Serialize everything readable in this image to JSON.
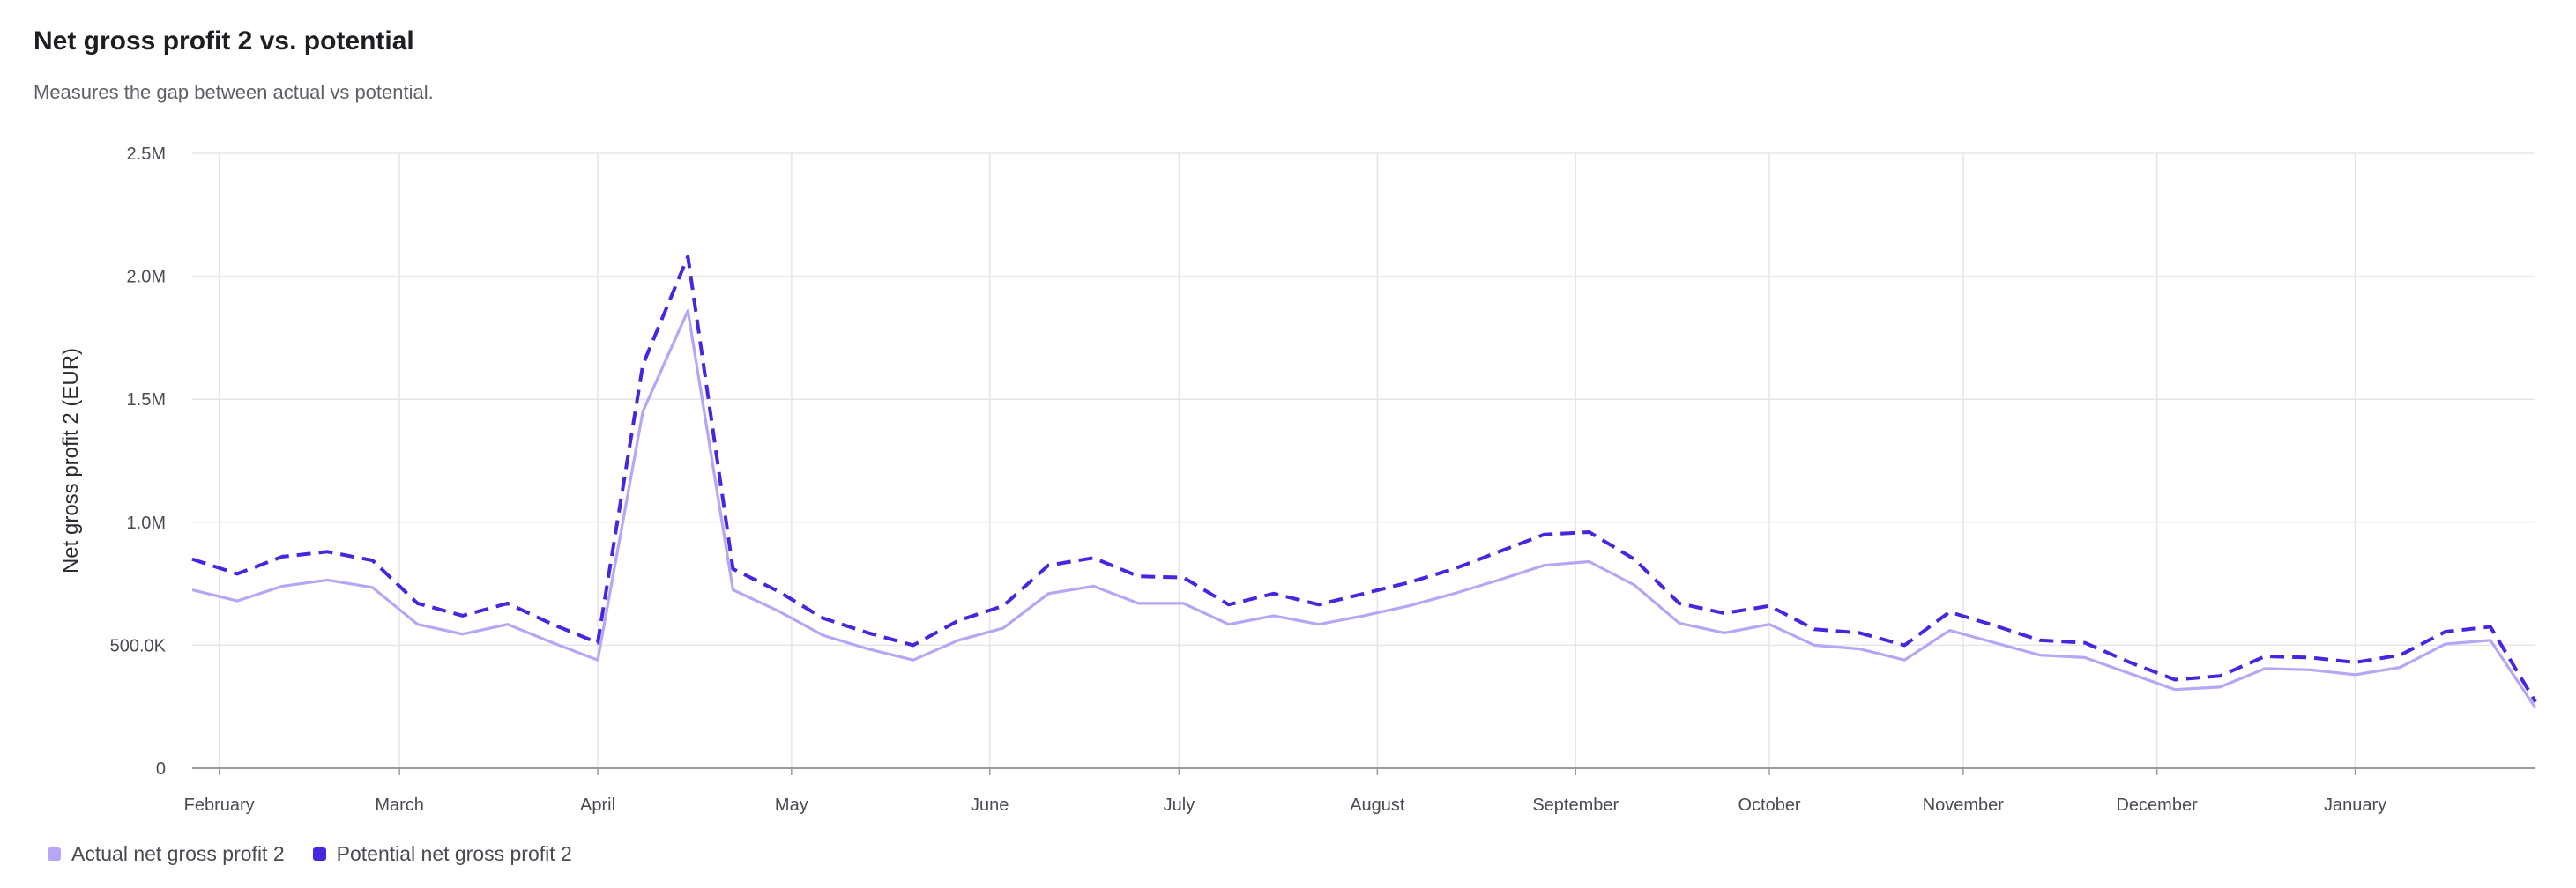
{
  "header": {
    "title": "Net gross profit 2 vs. potential",
    "subtitle": "Measures the gap between actual vs potential."
  },
  "colors": {
    "actual": "#b6a6f5",
    "potential": "#4527e0",
    "grid": "#e6e6ea",
    "axis": "#9a9aa2",
    "tick_text": "#4a4a52"
  },
  "chart_data": {
    "type": "line",
    "title": "Net gross profit 2 vs. potential",
    "subtitle": "Measures the gap between actual vs potential.",
    "xlabel": "",
    "ylabel": "Net gross profit 2 (EUR)",
    "ylim": [
      0,
      2500000
    ],
    "yticks": [
      0,
      500000,
      1000000,
      1500000,
      2000000,
      2500000
    ],
    "ytick_labels": [
      "0",
      "500.0K",
      "1.0M",
      "1.5M",
      "2.0M",
      "2.5M"
    ],
    "x_type": "weekly time axis",
    "x_range_weeks": [
      0,
      52
    ],
    "xticks": [
      {
        "label": "February",
        "week": 0.6
      },
      {
        "label": "March",
        "week": 4.6
      },
      {
        "label": "April",
        "week": 9.0
      },
      {
        "label": "May",
        "week": 13.3
      },
      {
        "label": "June",
        "week": 17.7
      },
      {
        "label": "July",
        "week": 21.9
      },
      {
        "label": "August",
        "week": 26.3
      },
      {
        "label": "September",
        "week": 30.7
      },
      {
        "label": "October",
        "week": 35.0
      },
      {
        "label": "November",
        "week": 39.3
      },
      {
        "label": "December",
        "week": 43.6
      },
      {
        "label": "January",
        "week": 48.0
      }
    ],
    "grid": true,
    "legend_position": "bottom-left",
    "series": [
      {
        "name": "Actual net gross profit 2",
        "style": "solid",
        "color": "#b6a6f5",
        "values": [
          725000,
          680000,
          740000,
          765000,
          735000,
          585000,
          545000,
          585000,
          510000,
          440000,
          1450000,
          1860000,
          725000,
          640000,
          540000,
          485000,
          440000,
          520000,
          570000,
          710000,
          740000,
          670000,
          670000,
          585000,
          620000,
          585000,
          620000,
          660000,
          710000,
          765000,
          825000,
          840000,
          745000,
          590000,
          550000,
          585000,
          500000,
          485000,
          440000,
          560000,
          510000,
          460000,
          450000,
          385000,
          320000,
          330000,
          405000,
          400000,
          380000,
          410000,
          505000,
          520000,
          245000
        ]
      },
      {
        "name": "Potential net gross profit 2",
        "style": "dashed",
        "color": "#4527e0",
        "values": [
          850000,
          790000,
          860000,
          880000,
          845000,
          670000,
          620000,
          670000,
          585000,
          510000,
          1640000,
          2080000,
          810000,
          720000,
          610000,
          550000,
          500000,
          600000,
          660000,
          825000,
          855000,
          780000,
          775000,
          665000,
          710000,
          665000,
          710000,
          755000,
          810000,
          880000,
          950000,
          960000,
          850000,
          670000,
          630000,
          660000,
          565000,
          550000,
          500000,
          635000,
          580000,
          520000,
          510000,
          430000,
          360000,
          375000,
          455000,
          450000,
          430000,
          460000,
          555000,
          575000,
          270000
        ]
      }
    ]
  },
  "legend": {
    "actual_label": "Actual net gross profit 2",
    "potential_label": "Potential net gross profit 2"
  }
}
